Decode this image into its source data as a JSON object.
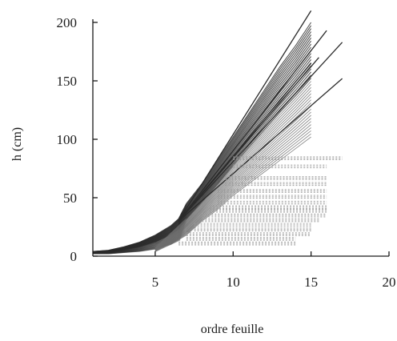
{
  "chart_data": {
    "type": "line",
    "title": "",
    "xlabel": "ordre feuille",
    "ylabel": "h (cm)",
    "xlim": [
      1,
      20
    ],
    "ylim": [
      0,
      200
    ],
    "xticks": [
      5,
      10,
      15,
      20
    ],
    "yticks": [
      0,
      50,
      100,
      150,
      200
    ],
    "grid": false,
    "legend": "none",
    "colors": {
      "growing": "#2b2b2b",
      "plateau": "#9a9a9a",
      "early": "#6e6e6e",
      "axis": "#1a1a1a"
    },
    "series_groups": [
      {
        "kind": "envelope",
        "x": [
          1,
          2,
          3,
          4,
          5,
          6,
          6.5,
          7,
          8,
          9,
          10,
          11,
          12,
          13,
          14,
          15
        ],
        "y_low": [
          2,
          2,
          3,
          4,
          6,
          10,
          14,
          18,
          30,
          40,
          52,
          62,
          72,
          82,
          92,
          102
        ],
        "y_high": [
          4,
          5,
          8,
          12,
          18,
          26,
          32,
          45,
          62,
          82,
          102,
          122,
          142,
          162,
          180,
          200
        ]
      },
      {
        "kind": "upper-lines",
        "lines": [
          {
            "x": [
              6.5,
              15
            ],
            "y": [
              30,
              210
            ]
          },
          {
            "x": [
              6.5,
              16
            ],
            "y": [
              30,
              193
            ]
          },
          {
            "x": [
              6.5,
              17
            ],
            "y": [
              30,
              183
            ]
          },
          {
            "x": [
              6.5,
              17
            ],
            "y": [
              30,
              152
            ]
          },
          {
            "x": [
              6.5,
              15.5
            ],
            "y": [
              30,
              170
            ]
          },
          {
            "x": [
              6.5,
              15
            ],
            "y": [
              30,
              165
            ]
          }
        ]
      },
      {
        "kind": "plateau-lines",
        "levels": [
          {
            "x_start": 10,
            "x_end": 17,
            "y": 85
          },
          {
            "x_start": 10,
            "x_end": 16,
            "y": 78
          },
          {
            "x_start": 9.5,
            "x_end": 16,
            "y": 68
          },
          {
            "x_start": 9.5,
            "x_end": 16,
            "y": 63
          },
          {
            "x_start": 9,
            "x_end": 16,
            "y": 57
          },
          {
            "x_start": 9,
            "x_end": 16,
            "y": 52
          },
          {
            "x_start": 9,
            "x_end": 16,
            "y": 47
          },
          {
            "x_start": 8.5,
            "x_end": 16,
            "y": 43
          },
          {
            "x_start": 8.5,
            "x_end": 16,
            "y": 40
          },
          {
            "x_start": 8,
            "x_end": 16,
            "y": 36
          },
          {
            "x_start": 8,
            "x_end": 15.5,
            "y": 32
          },
          {
            "x_start": 7.5,
            "x_end": 15,
            "y": 28
          },
          {
            "x_start": 7.5,
            "x_end": 15,
            "y": 24
          },
          {
            "x_start": 7,
            "x_end": 15,
            "y": 20
          },
          {
            "x_start": 7,
            "x_end": 14,
            "y": 16
          },
          {
            "x_start": 6.5,
            "x_end": 14,
            "y": 12
          }
        ]
      }
    ]
  }
}
